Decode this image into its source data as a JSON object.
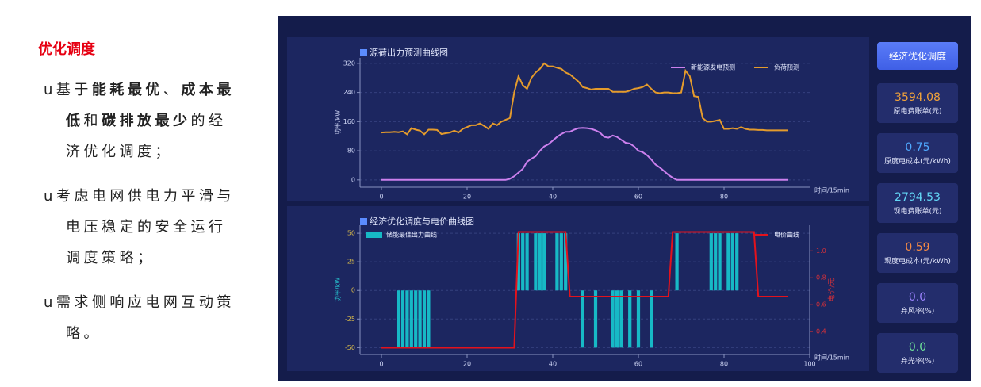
{
  "text_panel": {
    "title": "优化调度",
    "bullets": [
      {
        "runs": [
          {
            "text": "u基于",
            "bold": false
          },
          {
            "text": "能耗最优",
            "bold": true
          },
          {
            "text": "、",
            "bold": false
          },
          {
            "text": "成本最低",
            "bold": true
          },
          {
            "text": "和",
            "bold": false
          },
          {
            "text": "碳排放最少",
            "bold": true
          },
          {
            "text": "的经济优化调度；",
            "bold": false
          }
        ]
      },
      {
        "runs": [
          {
            "text": "u考虑电网供电力平滑与电压稳定的安全运行调度策略；",
            "bold": false
          }
        ]
      },
      {
        "runs": [
          {
            "text": "u需求侧响应电网互动策略。",
            "bold": false
          }
        ]
      }
    ]
  },
  "button": "经济优化调度",
  "cards": [
    {
      "value": "3594.08",
      "label": "原电费账单(元)",
      "color": "#f2a33a"
    },
    {
      "value": "0.75",
      "label": "原度电成本(元/kWh)",
      "color": "#4fa9ff"
    },
    {
      "value": "2794.53",
      "label": "现电费账单(元)",
      "color": "#63d6f5"
    },
    {
      "value": "0.59",
      "label": "现度电成本(元/kWh)",
      "color": "#f58a45"
    },
    {
      "value": "0.0",
      "label": "弃风率(%)",
      "color": "#9b83ff"
    },
    {
      "value": "0.0",
      "label": "弃光率(%)",
      "color": "#6ee39a"
    }
  ],
  "chart_data": [
    {
      "type": "line",
      "title": "源荷出力预测曲线图",
      "ylabel": "功率/kW",
      "xlabel": "时间/15min",
      "xlim": [
        -5,
        100
      ],
      "xticks": [
        0,
        20,
        40,
        60,
        80
      ],
      "ylim": [
        -20,
        335
      ],
      "yticks": [
        0,
        80,
        160,
        240,
        320
      ],
      "grid": true,
      "legend": "top-right",
      "x": [
        0,
        1,
        2,
        3,
        4,
        5,
        6,
        7,
        8,
        9,
        10,
        11,
        12,
        13,
        14,
        15,
        16,
        17,
        18,
        19,
        20,
        21,
        22,
        23,
        24,
        25,
        26,
        27,
        28,
        29,
        30,
        31,
        32,
        33,
        34,
        35,
        36,
        37,
        38,
        39,
        40,
        41,
        42,
        43,
        44,
        45,
        46,
        47,
        48,
        49,
        50,
        51,
        52,
        53,
        54,
        55,
        56,
        57,
        58,
        59,
        60,
        61,
        62,
        63,
        64,
        65,
        66,
        67,
        68,
        69,
        70,
        71,
        72,
        73,
        74,
        75,
        76,
        77,
        78,
        79,
        80,
        81,
        82,
        83,
        84,
        85,
        86,
        87,
        88,
        89,
        90,
        91,
        92,
        93,
        94,
        95
      ],
      "series": [
        {
          "name": "新能源发电预测",
          "color": "#cc80ee",
          "values": [
            0,
            0,
            0,
            0,
            0,
            0,
            0,
            0,
            0,
            0,
            0,
            0,
            0,
            0,
            0,
            0,
            0,
            0,
            0,
            0,
            0,
            0,
            0,
            0,
            0,
            0,
            0,
            0,
            0,
            0,
            3,
            10,
            20,
            30,
            50,
            58,
            65,
            80,
            92,
            98,
            108,
            118,
            126,
            132,
            132,
            138,
            142,
            143,
            142,
            140,
            136,
            130,
            118,
            116,
            122,
            118,
            110,
            102,
            100,
            92,
            80,
            76,
            68,
            56,
            42,
            34,
            24,
            14,
            6,
            0,
            0,
            0,
            0,
            0,
            0,
            0,
            0,
            0,
            0,
            0,
            0,
            0,
            0,
            0,
            0,
            0,
            0,
            0,
            0,
            0,
            0,
            0,
            0,
            0,
            0,
            0
          ]
        },
        {
          "name": "负荷预测",
          "color": "#e49b2c",
          "values": [
            130,
            131,
            131,
            132,
            131,
            133,
            125,
            142,
            138,
            135,
            125,
            138,
            138,
            137,
            126,
            128,
            130,
            135,
            130,
            140,
            145,
            150,
            150,
            155,
            148,
            140,
            155,
            150,
            160,
            165,
            170,
            240,
            285,
            260,
            250,
            280,
            295,
            305,
            320,
            312,
            312,
            308,
            305,
            295,
            290,
            280,
            270,
            255,
            252,
            248,
            250,
            250,
            250,
            250,
            242,
            242,
            242,
            242,
            245,
            250,
            252,
            255,
            262,
            250,
            240,
            238,
            240,
            240,
            238,
            238,
            240,
            300,
            285,
            230,
            228,
            170,
            160,
            160,
            162,
            165,
            140,
            140,
            142,
            140,
            145,
            140,
            138,
            138,
            137,
            137,
            136,
            136,
            136,
            136,
            136,
            136
          ]
        }
      ]
    },
    {
      "type": "bar",
      "title": "经济优化调度与电价曲线图",
      "ylabel": "功率/kW",
      "y2label": "电价/元",
      "xlabel": "时间/15min",
      "xlim": [
        -5,
        100
      ],
      "xticks": [
        0,
        20,
        40,
        60,
        80,
        100
      ],
      "ylim": [
        -56,
        57
      ],
      "yticks": [
        -50,
        -25,
        0,
        25,
        50
      ],
      "y2lim": [
        0.23,
        1.19
      ],
      "y2ticks": [
        0.4,
        0.6,
        0.8,
        {
          "value": 1,
          "label": "1.0"
        }
      ],
      "grid": true,
      "x": [
        0,
        1,
        2,
        3,
        4,
        5,
        6,
        7,
        8,
        9,
        10,
        11,
        12,
        13,
        14,
        15,
        16,
        17,
        18,
        19,
        20,
        21,
        22,
        23,
        24,
        25,
        26,
        27,
        28,
        29,
        30,
        31,
        32,
        33,
        34,
        35,
        36,
        37,
        38,
        39,
        40,
        41,
        42,
        43,
        44,
        45,
        46,
        47,
        48,
        49,
        50,
        51,
        52,
        53,
        54,
        55,
        56,
        57,
        58,
        59,
        60,
        61,
        62,
        63,
        64,
        65,
        66,
        67,
        68,
        69,
        70,
        71,
        72,
        73,
        74,
        75,
        76,
        77,
        78,
        79,
        80,
        81,
        82,
        83,
        84,
        85,
        86,
        87,
        88,
        89,
        90,
        91,
        92,
        93,
        94,
        95
      ],
      "series": [
        {
          "name": "储能最佳出力曲线",
          "color": "#17b9c6",
          "legend": "top-left",
          "values": [
            0,
            0,
            0,
            0,
            -50,
            -50,
            -50,
            -50,
            -50,
            -50,
            -50,
            -50,
            0,
            0,
            0,
            0,
            0,
            0,
            0,
            0,
            0,
            0,
            0,
            0,
            0,
            0,
            0,
            0,
            0,
            0,
            0,
            0,
            50,
            50,
            50,
            0,
            50,
            50,
            50,
            0,
            0,
            50,
            50,
            50,
            0,
            0,
            0,
            -50,
            0,
            0,
            -50,
            0,
            0,
            0,
            -50,
            -50,
            -50,
            0,
            -50,
            0,
            -50,
            0,
            0,
            -50,
            0,
            0,
            0,
            0,
            0,
            50,
            0,
            0,
            0,
            0,
            0,
            0,
            0,
            50,
            50,
            50,
            0,
            50,
            50,
            50,
            0,
            0,
            0,
            0,
            0,
            0,
            0,
            0,
            0,
            0,
            0,
            0
          ]
        },
        {
          "name": "电价曲线",
          "color": "#e3121c",
          "type": "line",
          "axis": "y2",
          "legend": "top-right",
          "values": [
            0.28,
            0.28,
            0.28,
            0.28,
            0.28,
            0.28,
            0.28,
            0.28,
            0.28,
            0.28,
            0.28,
            0.28,
            0.28,
            0.28,
            0.28,
            0.28,
            0.28,
            0.28,
            0.28,
            0.28,
            0.28,
            0.28,
            0.28,
            0.28,
            0.28,
            0.28,
            0.28,
            0.28,
            0.28,
            0.28,
            0.28,
            0.28,
            1.14,
            1.14,
            1.14,
            1.14,
            1.14,
            1.14,
            1.14,
            1.14,
            1.14,
            1.14,
            1.14,
            1.14,
            0.66,
            0.66,
            0.66,
            0.66,
            0.66,
            0.66,
            0.66,
            0.66,
            0.66,
            0.66,
            0.66,
            0.66,
            0.66,
            0.66,
            0.66,
            0.66,
            0.66,
            0.66,
            0.66,
            0.66,
            0.66,
            0.66,
            0.66,
            0.66,
            1.14,
            1.14,
            1.14,
            1.14,
            1.14,
            1.14,
            1.14,
            1.14,
            1.14,
            1.14,
            1.14,
            1.14,
            1.14,
            1.14,
            1.14,
            1.14,
            1.14,
            1.14,
            1.14,
            1.14,
            0.66,
            0.66,
            0.66,
            0.66,
            0.66,
            0.66,
            0.66,
            0.66
          ]
        }
      ]
    }
  ]
}
